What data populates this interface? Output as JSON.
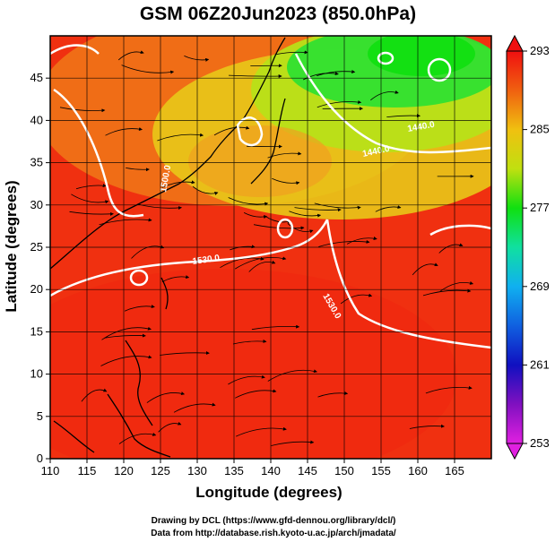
{
  "title": "GSM 06Z20Jun2023 (850.0hPa)",
  "xlabel": "Longitude (degrees)",
  "ylabel": "Latitude  (degrees)",
  "x_ticks": [
    "110",
    "115",
    "120",
    "125",
    "130",
    "135",
    "140",
    "145",
    "150",
    "155",
    "160",
    "165"
  ],
  "y_ticks": [
    "0",
    "5",
    "10",
    "15",
    "20",
    "25",
    "30",
    "35",
    "40",
    "45"
  ],
  "colorbar": {
    "ticks": [
      "293",
      "285",
      "277",
      "269",
      "261",
      "253"
    ],
    "stops": [
      {
        "value": 253,
        "color": "#e020e0"
      },
      {
        "value": 257,
        "color": "#8010c0"
      },
      {
        "value": 261,
        "color": "#1010c0"
      },
      {
        "value": 265,
        "color": "#1060e0"
      },
      {
        "value": 269,
        "color": "#10b0f0"
      },
      {
        "value": 273,
        "color": "#10e0a0"
      },
      {
        "value": 277,
        "color": "#10e010"
      },
      {
        "value": 281,
        "color": "#c0e010"
      },
      {
        "value": 285,
        "color": "#f0c010"
      },
      {
        "value": 289,
        "color": "#f06010"
      },
      {
        "value": 293,
        "color": "#f01010"
      }
    ]
  },
  "contour_labels": [
    "1440.0",
    "1440.0",
    "1500.0",
    "1530.0",
    "1530.0"
  ],
  "credits": {
    "line1": "Drawing by DCL (https://www.gfd-dennou.org/library/dcl/)",
    "line2": "Data from http://database.rish.kyoto-u.ac.jp/arch/jmadata/"
  },
  "chart_data": {
    "type": "heatmap",
    "title": "GSM 06Z20Jun2023 (850.0hPa)",
    "xlabel": "Longitude (degrees)",
    "ylabel": "Latitude  (degrees)",
    "xlim": [
      110,
      170
    ],
    "ylim": [
      0,
      50
    ],
    "color_range": [
      253,
      293
    ],
    "temperature_regions": [
      {
        "lon": 150,
        "lat": 45,
        "value": 276
      },
      {
        "lon": 160,
        "lat": 42,
        "value": 279
      },
      {
        "lon": 145,
        "lat": 38,
        "value": 282
      },
      {
        "lon": 125,
        "lat": 45,
        "value": 286
      },
      {
        "lon": 135,
        "lat": 30,
        "value": 288
      },
      {
        "lon": 150,
        "lat": 25,
        "value": 289
      },
      {
        "lon": 115,
        "lat": 20,
        "value": 291
      },
      {
        "lon": 140,
        "lat": 10,
        "value": 291
      }
    ],
    "grid": true
  }
}
